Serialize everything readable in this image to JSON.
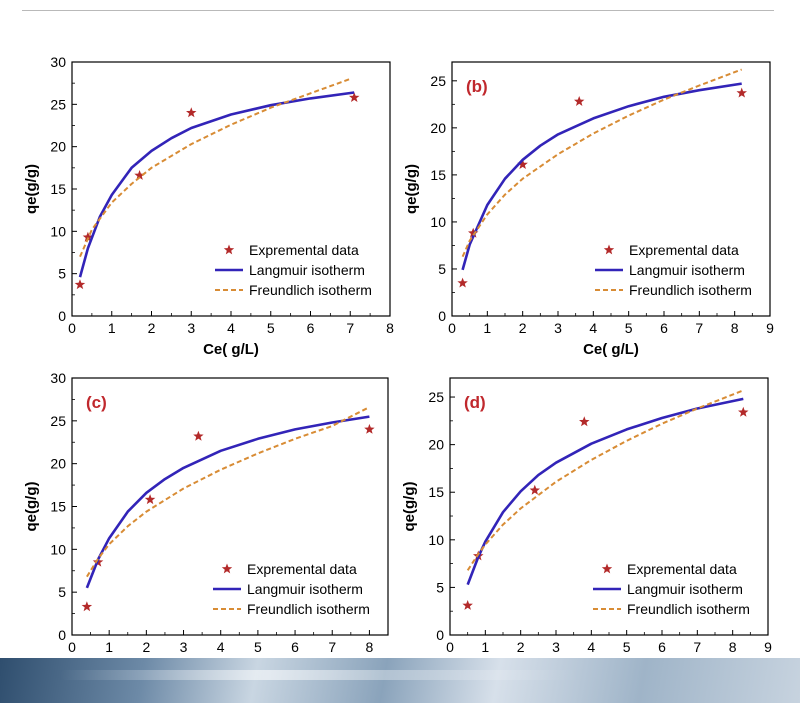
{
  "colors": {
    "experimental": "#b32a2a",
    "langmuir": "#3224b8",
    "freundlich": "#d88c35",
    "panel_label": "#c0282d",
    "axis": "#000000"
  },
  "chart_data": [
    {
      "type": "line",
      "panel_label": "",
      "xlabel": "Ce( g/L)",
      "ylabel": "qe(g/g)",
      "xlim": [
        0,
        8
      ],
      "ylim": [
        0,
        30
      ],
      "xticks": [
        0,
        1,
        2,
        3,
        4,
        5,
        6,
        7,
        8
      ],
      "yticks": [
        0,
        5,
        10,
        15,
        20,
        25,
        30
      ],
      "legend": [
        "Expremental data",
        "Langmuir isotherm",
        "Freundlich isotherm"
      ],
      "legend_position": "bottom-right",
      "series": [
        {
          "name": "Expremental data",
          "kind": "scatter",
          "x": [
            0.2,
            0.4,
            1.7,
            3.0,
            7.1
          ],
          "y": [
            3.7,
            9.3,
            16.6,
            24.0,
            25.8
          ]
        },
        {
          "name": "Langmuir isotherm",
          "kind": "line",
          "x": [
            0.2,
            0.4,
            0.7,
            1.0,
            1.5,
            2.0,
            2.5,
            3.0,
            4.0,
            5.0,
            6.0,
            7.1
          ],
          "y": [
            4.6,
            8.0,
            11.7,
            14.3,
            17.5,
            19.5,
            21.0,
            22.2,
            23.8,
            24.9,
            25.7,
            26.4
          ]
        },
        {
          "name": "Freundlich isotherm",
          "kind": "dashed",
          "x": [
            0.2,
            0.5,
            1.0,
            1.5,
            2.0,
            3.0,
            4.0,
            5.0,
            6.0,
            7.0
          ],
          "y": [
            7.0,
            10.2,
            13.4,
            15.6,
            17.5,
            20.3,
            22.6,
            24.6,
            26.3,
            28.0
          ]
        }
      ]
    },
    {
      "type": "line",
      "panel_label": "(b)",
      "xlabel": "Ce( g/L)",
      "ylabel": "qe(g/g)",
      "xlim": [
        0,
        9
      ],
      "ylim": [
        0,
        27
      ],
      "xticks": [
        0,
        1,
        2,
        3,
        4,
        5,
        6,
        7,
        8,
        9
      ],
      "yticks": [
        0,
        5,
        10,
        15,
        20,
        25
      ],
      "legend": [
        "Expremental data",
        "Langmuir isotherm",
        "Freundlich isotherm"
      ],
      "legend_position": "bottom-right",
      "series": [
        {
          "name": "Expremental data",
          "kind": "scatter",
          "x": [
            0.3,
            0.6,
            2.0,
            3.6,
            8.2
          ],
          "y": [
            3.5,
            8.8,
            16.1,
            22.8,
            23.7
          ]
        },
        {
          "name": "Langmuir isotherm",
          "kind": "line",
          "x": [
            0.3,
            0.5,
            1.0,
            1.5,
            2.0,
            2.5,
            3.0,
            4.0,
            5.0,
            6.0,
            7.0,
            8.2
          ],
          "y": [
            4.9,
            7.6,
            11.8,
            14.6,
            16.6,
            18.1,
            19.3,
            21.0,
            22.3,
            23.3,
            24.0,
            24.7
          ]
        },
        {
          "name": "Freundlich isotherm",
          "kind": "dashed",
          "x": [
            0.3,
            0.5,
            1.0,
            1.5,
            2.0,
            3.0,
            4.0,
            5.0,
            6.0,
            7.0,
            8.2
          ],
          "y": [
            6.3,
            8.0,
            10.8,
            12.9,
            14.6,
            17.2,
            19.4,
            21.3,
            23.0,
            24.5,
            26.2
          ]
        }
      ]
    },
    {
      "type": "line",
      "panel_label": "(c)",
      "xlabel": "",
      "ylabel": "qe(g/g)",
      "xlim": [
        0,
        8.5
      ],
      "ylim": [
        0,
        30
      ],
      "xticks": [
        0,
        1,
        2,
        3,
        4,
        5,
        6,
        7,
        8
      ],
      "yticks": [
        0,
        5,
        10,
        15,
        20,
        25,
        30
      ],
      "legend": [
        "Expremental data",
        "Langmuir isotherm",
        "Freundlich isotherm"
      ],
      "legend_position": "bottom-right",
      "series": [
        {
          "name": "Expremental data",
          "kind": "scatter",
          "x": [
            0.4,
            0.7,
            2.1,
            3.4,
            8.0
          ],
          "y": [
            3.3,
            8.5,
            15.8,
            23.2,
            24.0
          ]
        },
        {
          "name": "Langmuir isotherm",
          "kind": "line",
          "x": [
            0.4,
            0.7,
            1.0,
            1.5,
            2.0,
            2.5,
            3.0,
            4.0,
            5.0,
            6.0,
            7.0,
            8.0
          ],
          "y": [
            5.5,
            8.8,
            11.3,
            14.4,
            16.6,
            18.2,
            19.5,
            21.5,
            22.9,
            24.0,
            24.8,
            25.5
          ]
        },
        {
          "name": "Freundlich isotherm",
          "kind": "dashed",
          "x": [
            0.4,
            0.7,
            1.0,
            1.5,
            2.0,
            3.0,
            4.0,
            5.0,
            6.0,
            7.0,
            8.0
          ],
          "y": [
            6.8,
            8.9,
            10.6,
            12.7,
            14.4,
            17.1,
            19.3,
            21.2,
            22.9,
            24.4,
            26.6
          ]
        }
      ]
    },
    {
      "type": "line",
      "panel_label": "(d)",
      "xlabel": "",
      "ylabel": "qe(g/g)",
      "xlim": [
        0,
        9
      ],
      "ylim": [
        0,
        27
      ],
      "xticks": [
        0,
        1,
        2,
        3,
        4,
        5,
        6,
        7,
        8,
        9
      ],
      "yticks": [
        0,
        5,
        10,
        15,
        20,
        25
      ],
      "legend": [
        "Expremental data",
        "Langmuir isotherm",
        "Freundlich isotherm"
      ],
      "legend_position": "bottom-right",
      "series": [
        {
          "name": "Expremental data",
          "kind": "scatter",
          "x": [
            0.5,
            0.8,
            2.4,
            3.8,
            8.3
          ],
          "y": [
            3.1,
            8.3,
            15.2,
            22.4,
            23.4
          ]
        },
        {
          "name": "Langmuir isotherm",
          "kind": "line",
          "x": [
            0.5,
            0.8,
            1.0,
            1.5,
            2.0,
            2.5,
            3.0,
            4.0,
            5.0,
            6.0,
            7.0,
            8.3
          ],
          "y": [
            5.3,
            8.2,
            9.8,
            12.9,
            15.1,
            16.8,
            18.1,
            20.1,
            21.6,
            22.8,
            23.8,
            24.8
          ]
        },
        {
          "name": "Freundlich isotherm",
          "kind": "dashed",
          "x": [
            0.5,
            0.8,
            1.0,
            1.5,
            2.0,
            3.0,
            4.0,
            5.0,
            6.0,
            7.0,
            8.3
          ],
          "y": [
            6.8,
            8.5,
            9.5,
            11.6,
            13.3,
            16.1,
            18.4,
            20.4,
            22.2,
            23.8,
            25.7
          ]
        }
      ]
    }
  ]
}
